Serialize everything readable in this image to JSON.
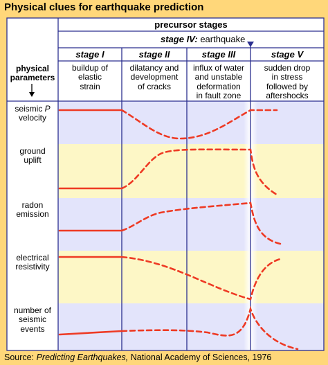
{
  "title": "Physical clues for earthquake prediction",
  "header": {
    "precursor": "precursor stages",
    "stage4_prefix": "stage IV:",
    "stage4_rest": " earthquake"
  },
  "stages": [
    {
      "label": "stage I",
      "desc": [
        "buildup of",
        "elastic",
        "strain"
      ]
    },
    {
      "label": "stage II",
      "desc": [
        "dilatancy and",
        "development",
        "of cracks"
      ]
    },
    {
      "label": "stage III",
      "desc": [
        "influx of water",
        "and unstable",
        "deformation",
        "in fault zone"
      ]
    },
    {
      "label": "stage V",
      "desc": [
        "sudden drop",
        "in stress",
        "followed by",
        "aftershocks"
      ]
    }
  ],
  "params_header": [
    "physical",
    "parameters"
  ],
  "params": [
    {
      "lines": [
        "seismic P",
        "velocity"
      ],
      "italic_word": "P"
    },
    {
      "lines": [
        "ground",
        "uplift"
      ]
    },
    {
      "lines": [
        "radon",
        "emission"
      ]
    },
    {
      "lines": [
        "electrical",
        "resistivity"
      ]
    },
    {
      "lines": [
        "number of",
        "seismic",
        "events"
      ]
    }
  ],
  "source": {
    "prefix": "Source: ",
    "work": "Predicting Earthquakes,",
    "rest": " National Academy of Sciences, 1976"
  },
  "colors": {
    "background": "#ffd77a",
    "row_blue": "#e3e4fb",
    "row_yellow": "#fdf7c6",
    "lines": "#2b2f8f",
    "curve": "#ee3a24"
  }
}
